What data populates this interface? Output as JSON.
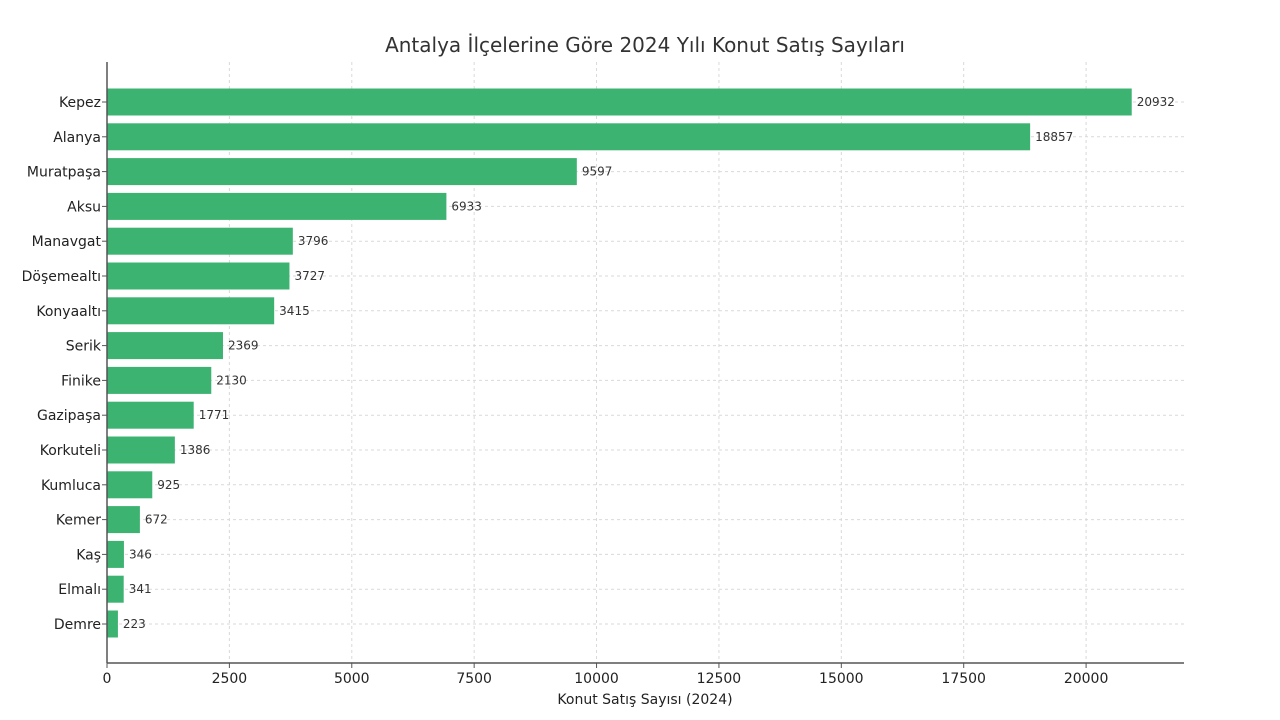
{
  "chart_data": {
    "type": "bar",
    "orientation": "horizontal",
    "title": "Antalya İlçelerine Göre 2024 Yılı Konut Satış Sayıları",
    "xlabel": "Konut Satış Sayısı (2024)",
    "ylabel": "",
    "categories": [
      "Kepez",
      "Alanya",
      "Muratpaşa",
      "Aksu",
      "Manavgat",
      "Döşemealtı",
      "Konyaaltı",
      "Serik",
      "Finike",
      "Gazipaşa",
      "Korkuteli",
      "Kumluca",
      "Kemer",
      "Kaş",
      "Elmalı",
      "Demre"
    ],
    "values": [
      20932,
      18857,
      9597,
      6933,
      3796,
      3727,
      3415,
      2369,
      2130,
      1771,
      1386,
      925,
      672,
      346,
      341,
      223
    ],
    "value_labels": [
      "20932",
      "18857",
      "9597",
      "6933",
      "3796",
      "3727",
      "3415",
      "2369",
      "2130",
      "1771",
      "1386",
      "925",
      "672",
      "346",
      "341",
      "223"
    ],
    "xlim": [
      0,
      22000
    ],
    "xticks": [
      0,
      2500,
      5000,
      7500,
      10000,
      12500,
      15000,
      17500,
      20000
    ],
    "xtick_labels": [
      "0",
      "2500",
      "5000",
      "7500",
      "10000",
      "12500",
      "15000",
      "17500",
      "20000"
    ],
    "grid": true,
    "bar_color": "#3cb371"
  }
}
